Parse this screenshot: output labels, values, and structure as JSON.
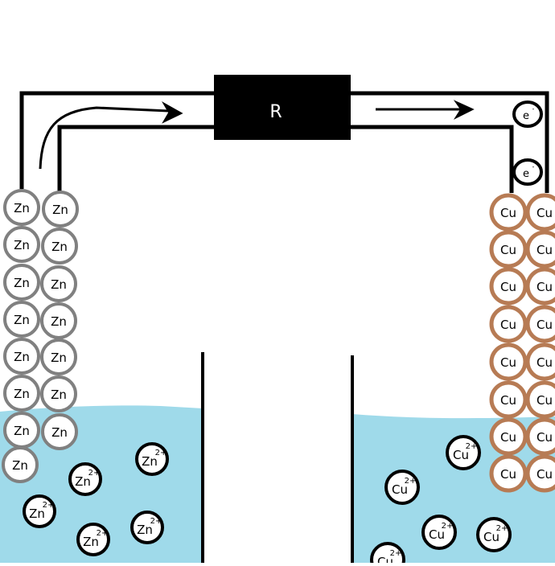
{
  "resistor": {
    "label": "R"
  },
  "electron": {
    "symbol": "e",
    "charge": "-"
  },
  "zinc": {
    "atom_label": "Zn",
    "ion_symbol": "Zn",
    "ion_charge": "2+"
  },
  "copper": {
    "atom_label": "Cu",
    "ion_symbol": "Cu",
    "ion_charge": "2+"
  },
  "colors": {
    "electrolyte": "#9fdaea",
    "zinc_atom_border": "#808080",
    "copper_atom_border": "#b77b54",
    "wire": "#000000",
    "resistor_fill": "#000000"
  },
  "icons": {
    "flow_arrow": "arrow-right-icon"
  }
}
